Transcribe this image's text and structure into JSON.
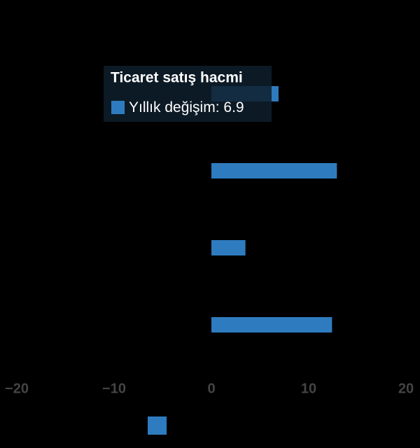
{
  "chart_data": {
    "type": "bar",
    "orientation": "horizontal",
    "categories": [
      "Ticaret satış hacmi",
      null,
      null,
      null
    ],
    "series": [
      {
        "color": "#2e7cbf",
        "values": [
          6.9,
          12.9,
          3.5,
          12.4
        ]
      }
    ],
    "xlim": [
      -20,
      20
    ],
    "xticks": [
      {
        "value": -20,
        "label": "−20"
      },
      {
        "value": -10,
        "label": "−10"
      },
      0,
      10,
      20
    ],
    "legend": "bottom",
    "tooltip": {
      "label": "Yıllık değişim:"
    }
  }
}
